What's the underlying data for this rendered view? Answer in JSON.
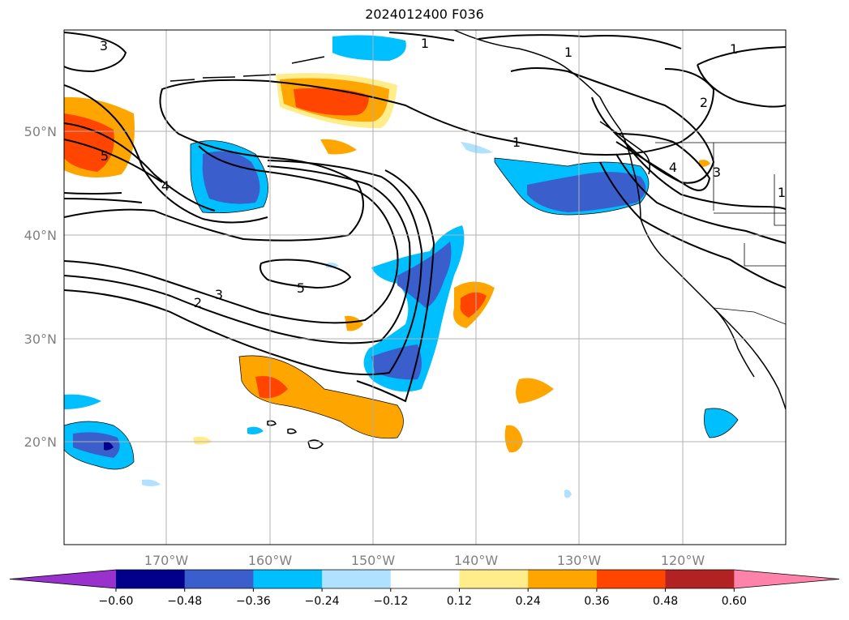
{
  "title": "2024012400 F036",
  "lon_labels": [
    "170°W",
    "160°W",
    "150°W",
    "140°W",
    "130°W",
    "120°W"
  ],
  "lat_labels": [
    "50°N",
    "40°N",
    "30°N",
    "20°N"
  ],
  "colorbar": {
    "ticks": [
      "−0.60",
      "−0.48",
      "−0.36",
      "−0.24",
      "−0.12",
      "0.12",
      "0.24",
      "0.36",
      "0.48",
      "0.60"
    ],
    "colors": [
      "#9932cc",
      "#00008b",
      "#3a5fcd",
      "#00bfff",
      "#b0e2ff",
      "#ffffff",
      "#ffec8b",
      "#ffa500",
      "#ff4500",
      "#b22222",
      "#ff82ab"
    ]
  },
  "contour_labels": [
    "3",
    "1",
    "1",
    "1",
    "1",
    "2",
    "5",
    "4",
    "1",
    "4",
    "3",
    "5",
    "3",
    "2"
  ]
}
